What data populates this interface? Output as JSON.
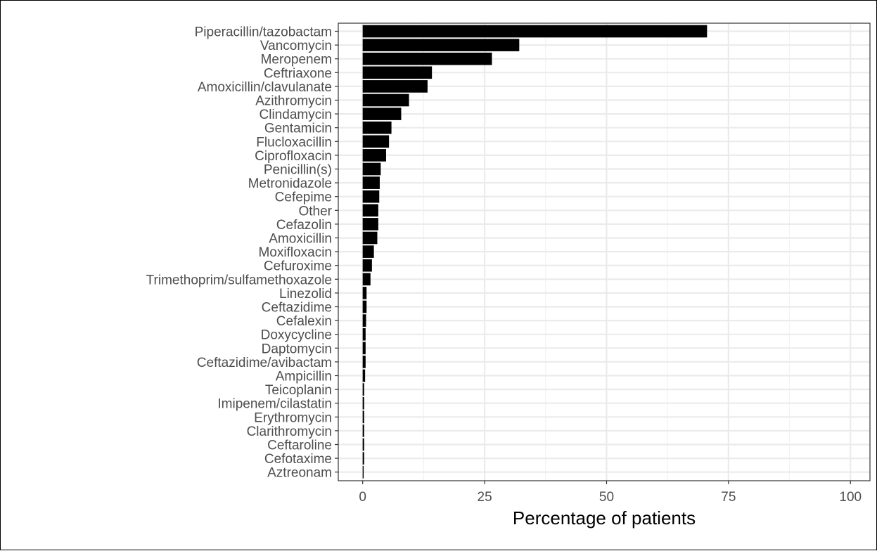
{
  "chart_data": {
    "type": "bar",
    "orientation": "horizontal",
    "xlabel": "Percentage of patients",
    "ylabel": "",
    "xlim": [
      -5,
      104
    ],
    "xticks": [
      0,
      25,
      50,
      75,
      100
    ],
    "xtick_labels": [
      "0",
      "25",
      "50",
      "75",
      "100"
    ],
    "grid": true,
    "bar_color": "#000000",
    "categories": [
      "Piperacillin/tazobactam",
      "Vancomycin",
      "Meropenem",
      "Ceftriaxone",
      "Amoxicillin/clavulanate",
      "Azithromycin",
      "Clindamycin",
      "Gentamicin",
      "Flucloxacillin",
      "Ciprofloxacin",
      "Penicillin(s)",
      "Metronidazole",
      "Cefepime",
      "Other",
      "Cefazolin",
      "Amoxicillin",
      "Moxifloxacin",
      "Cefuroxime",
      "Trimethoprim/sulfamethoxazole",
      "Linezolid",
      "Ceftazidime",
      "Cefalexin",
      "Doxycycline",
      "Daptomycin",
      "Ceftazidime/avibactam",
      "Ampicillin",
      "Teicoplanin",
      "Imipenem/cilastatin",
      "Erythromycin",
      "Clarithromycin",
      "Ceftaroline",
      "Cefotaxime",
      "Aztreonam"
    ],
    "values": [
      70.6,
      32.1,
      26.5,
      14.2,
      13.3,
      9.5,
      7.9,
      5.9,
      5.4,
      4.8,
      3.7,
      3.5,
      3.4,
      3.2,
      3.2,
      3.0,
      2.3,
      1.9,
      1.6,
      0.8,
      0.8,
      0.7,
      0.6,
      0.6,
      0.6,
      0.5,
      0.3,
      0.3,
      0.3,
      0.3,
      0.3,
      0.3,
      0.2
    ]
  }
}
